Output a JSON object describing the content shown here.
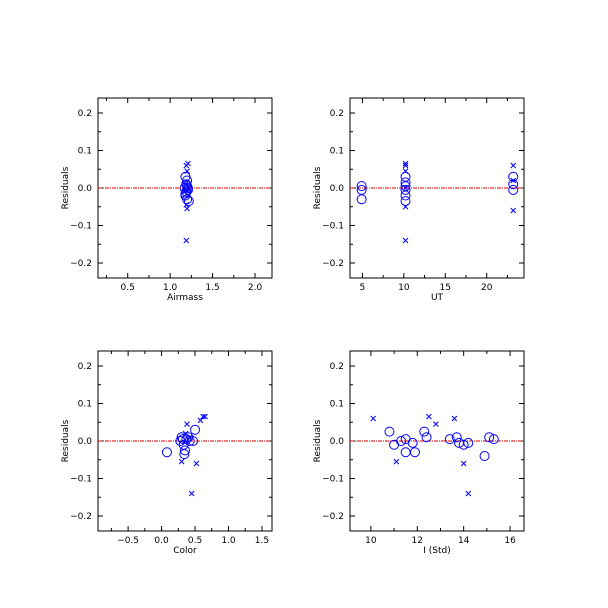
{
  "chart_data": [
    {
      "type": "scatter",
      "xlabel": "Airmass",
      "ylabel": "Residuals",
      "xlim": [
        0.15,
        2.2
      ],
      "ylim": [
        -0.24,
        0.24
      ],
      "xticks": [
        0.5,
        1.0,
        1.5,
        2.0
      ],
      "xticklabels": [
        "0.5",
        "1.0",
        "1.5",
        "2.0"
      ],
      "yticks": [
        -0.2,
        -0.1,
        0.0,
        0.1,
        0.2
      ],
      "yticklabels": [
        "−0.2",
        "−0.1",
        "0.0",
        "0.1",
        "0.2"
      ],
      "series": [
        {
          "marker": "circle",
          "points": [
            [
              1.18,
              0.03
            ],
            [
              1.2,
              0.02
            ],
            [
              1.19,
              0.01
            ],
            [
              1.2,
              0.005
            ],
            [
              1.17,
              0.0
            ],
            [
              1.21,
              -0.005
            ],
            [
              1.19,
              -0.01
            ],
            [
              1.18,
              -0.02
            ],
            [
              1.2,
              -0.03
            ],
            [
              1.22,
              -0.035
            ],
            [
              1.21,
              0.0
            ],
            [
              1.18,
              -0.015
            ]
          ]
        },
        {
          "marker": "x",
          "points": [
            [
              1.21,
              0.065
            ],
            [
              1.19,
              0.06
            ],
            [
              1.2,
              0.045
            ],
            [
              1.18,
              0.01
            ],
            [
              1.22,
              0.0
            ],
            [
              1.17,
              -0.01
            ],
            [
              1.19,
              -0.045
            ],
            [
              1.2,
              -0.055
            ],
            [
              1.19,
              -0.14
            ]
          ]
        }
      ]
    },
    {
      "type": "scatter",
      "xlabel": "UT",
      "ylabel": "Residuals",
      "xlim": [
        3.5,
        24.5
      ],
      "ylim": [
        -0.24,
        0.24
      ],
      "xticks": [
        5,
        10,
        15,
        20
      ],
      "xticklabels": [
        "5",
        "10",
        "15",
        "20"
      ],
      "yticks": [
        -0.2,
        -0.1,
        0.0,
        0.1,
        0.2
      ],
      "yticklabels": [
        "−0.2",
        "−0.1",
        "0.0",
        "0.1",
        "0.2"
      ],
      "series": [
        {
          "marker": "circle",
          "points": [
            [
              4.9,
              0.005
            ],
            [
              4.9,
              -0.005
            ],
            [
              4.9,
              -0.03
            ],
            [
              10.2,
              0.03
            ],
            [
              10.2,
              0.015
            ],
            [
              10.2,
              0.005
            ],
            [
              10.2,
              -0.005
            ],
            [
              10.2,
              -0.02
            ],
            [
              10.2,
              -0.035
            ],
            [
              23.2,
              0.03
            ],
            [
              23.2,
              0.01
            ],
            [
              23.2,
              -0.005
            ]
          ]
        },
        {
          "marker": "x",
          "points": [
            [
              10.2,
              0.065
            ],
            [
              10.2,
              0.06
            ],
            [
              10.2,
              0.045
            ],
            [
              10.2,
              0.0
            ],
            [
              10.2,
              -0.05
            ],
            [
              10.2,
              -0.14
            ],
            [
              23.2,
              0.06
            ],
            [
              23.2,
              0.02
            ],
            [
              23.2,
              -0.06
            ]
          ]
        }
      ]
    },
    {
      "type": "scatter",
      "xlabel": "Color",
      "ylabel": "Residuals",
      "xlim": [
        -0.95,
        1.65
      ],
      "ylim": [
        -0.24,
        0.24
      ],
      "xticks": [
        -0.5,
        0.0,
        0.5,
        1.0,
        1.5
      ],
      "xticklabels": [
        "−0.5",
        "0.0",
        "0.5",
        "1.0",
        "1.5"
      ],
      "yticks": [
        -0.2,
        -0.1,
        0.0,
        0.1,
        0.2
      ],
      "yticklabels": [
        "−0.2",
        "−0.1",
        "0.0",
        "0.1",
        "0.2"
      ],
      "series": [
        {
          "marker": "circle",
          "points": [
            [
              0.08,
              -0.03
            ],
            [
              0.28,
              0.0
            ],
            [
              0.3,
              0.01
            ],
            [
              0.32,
              0.005
            ],
            [
              0.33,
              -0.01
            ],
            [
              0.35,
              -0.025
            ],
            [
              0.34,
              -0.035
            ],
            [
              0.37,
              0.005
            ],
            [
              0.4,
              0.01
            ],
            [
              0.42,
              0.0
            ],
            [
              0.47,
              0.0
            ],
            [
              0.5,
              0.03
            ]
          ]
        },
        {
          "marker": "x",
          "points": [
            [
              0.58,
              0.055
            ],
            [
              0.62,
              0.065
            ],
            [
              0.65,
              0.065
            ],
            [
              0.38,
              0.045
            ],
            [
              0.3,
              -0.055
            ],
            [
              0.52,
              -0.06
            ],
            [
              0.45,
              -0.14
            ],
            [
              0.36,
              0.02
            ],
            [
              0.42,
              0.01
            ]
          ]
        }
      ]
    },
    {
      "type": "scatter",
      "xlabel": "I (Std)",
      "ylabel": "Residuals",
      "xlim": [
        9.1,
        16.6
      ],
      "ylim": [
        -0.24,
        0.24
      ],
      "xticks": [
        10,
        12,
        14,
        16
      ],
      "xticklabels": [
        "10",
        "12",
        "14",
        "16"
      ],
      "yticks": [
        -0.2,
        -0.1,
        0.0,
        0.1,
        0.2
      ],
      "yticklabels": [
        "−0.2",
        "−0.1",
        "0.0",
        "0.1",
        "0.2"
      ],
      "series": [
        {
          "marker": "circle",
          "points": [
            [
              10.8,
              0.025
            ],
            [
              11.0,
              -0.01
            ],
            [
              11.3,
              0.0
            ],
            [
              11.5,
              0.005
            ],
            [
              11.5,
              -0.03
            ],
            [
              11.8,
              -0.005
            ],
            [
              11.9,
              -0.03
            ],
            [
              12.3,
              0.025
            ],
            [
              12.4,
              0.01
            ],
            [
              13.4,
              0.005
            ],
            [
              13.7,
              0.01
            ],
            [
              13.8,
              -0.005
            ],
            [
              14.0,
              -0.01
            ],
            [
              14.2,
              -0.005
            ],
            [
              14.9,
              -0.04
            ],
            [
              15.1,
              0.01
            ],
            [
              15.3,
              0.005
            ]
          ]
        },
        {
          "marker": "x",
          "points": [
            [
              10.1,
              0.06
            ],
            [
              11.1,
              -0.055
            ],
            [
              12.5,
              0.065
            ],
            [
              12.8,
              0.045
            ],
            [
              13.6,
              0.06
            ],
            [
              14.0,
              -0.06
            ],
            [
              14.2,
              -0.14
            ]
          ]
        }
      ]
    }
  ]
}
